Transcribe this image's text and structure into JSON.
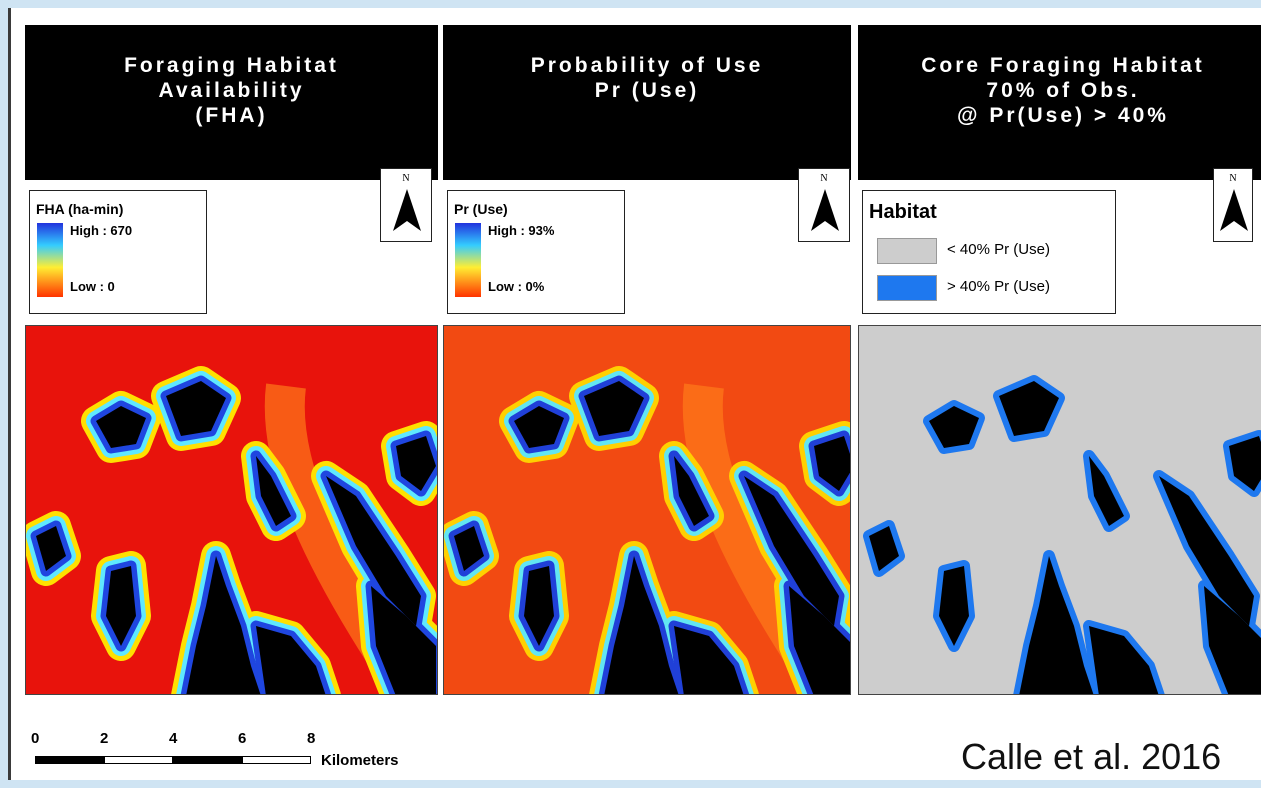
{
  "panels": [
    {
      "title": [
        "Foraging Habitat",
        "Availability",
        "(FHA)"
      ],
      "north": "N",
      "legend": {
        "kind": "gradient",
        "title": "FHA (ha-min)",
        "high": "High : 670",
        "low": "Low : 0"
      }
    },
    {
      "title": [
        "Probability of Use",
        "Pr (Use)"
      ],
      "north": "N",
      "legend": {
        "kind": "gradient",
        "title": "Pr (Use)",
        "high": "High : 93%",
        "low": "Low : 0%"
      }
    },
    {
      "title": [
        "Core Foraging Habitat",
        "70% of Obs.",
        "@ Pr(Use) > 40%"
      ],
      "north": "N",
      "legend": {
        "kind": "classes",
        "title": "Habitat",
        "items": [
          "< 40% Pr (Use)",
          "> 40% Pr (Use)"
        ]
      }
    }
  ],
  "scale_bar": {
    "labels": [
      "0",
      "2",
      "4",
      "6",
      "8"
    ],
    "unit": "Kilometers"
  },
  "citation": "Calle et al. 2016"
}
